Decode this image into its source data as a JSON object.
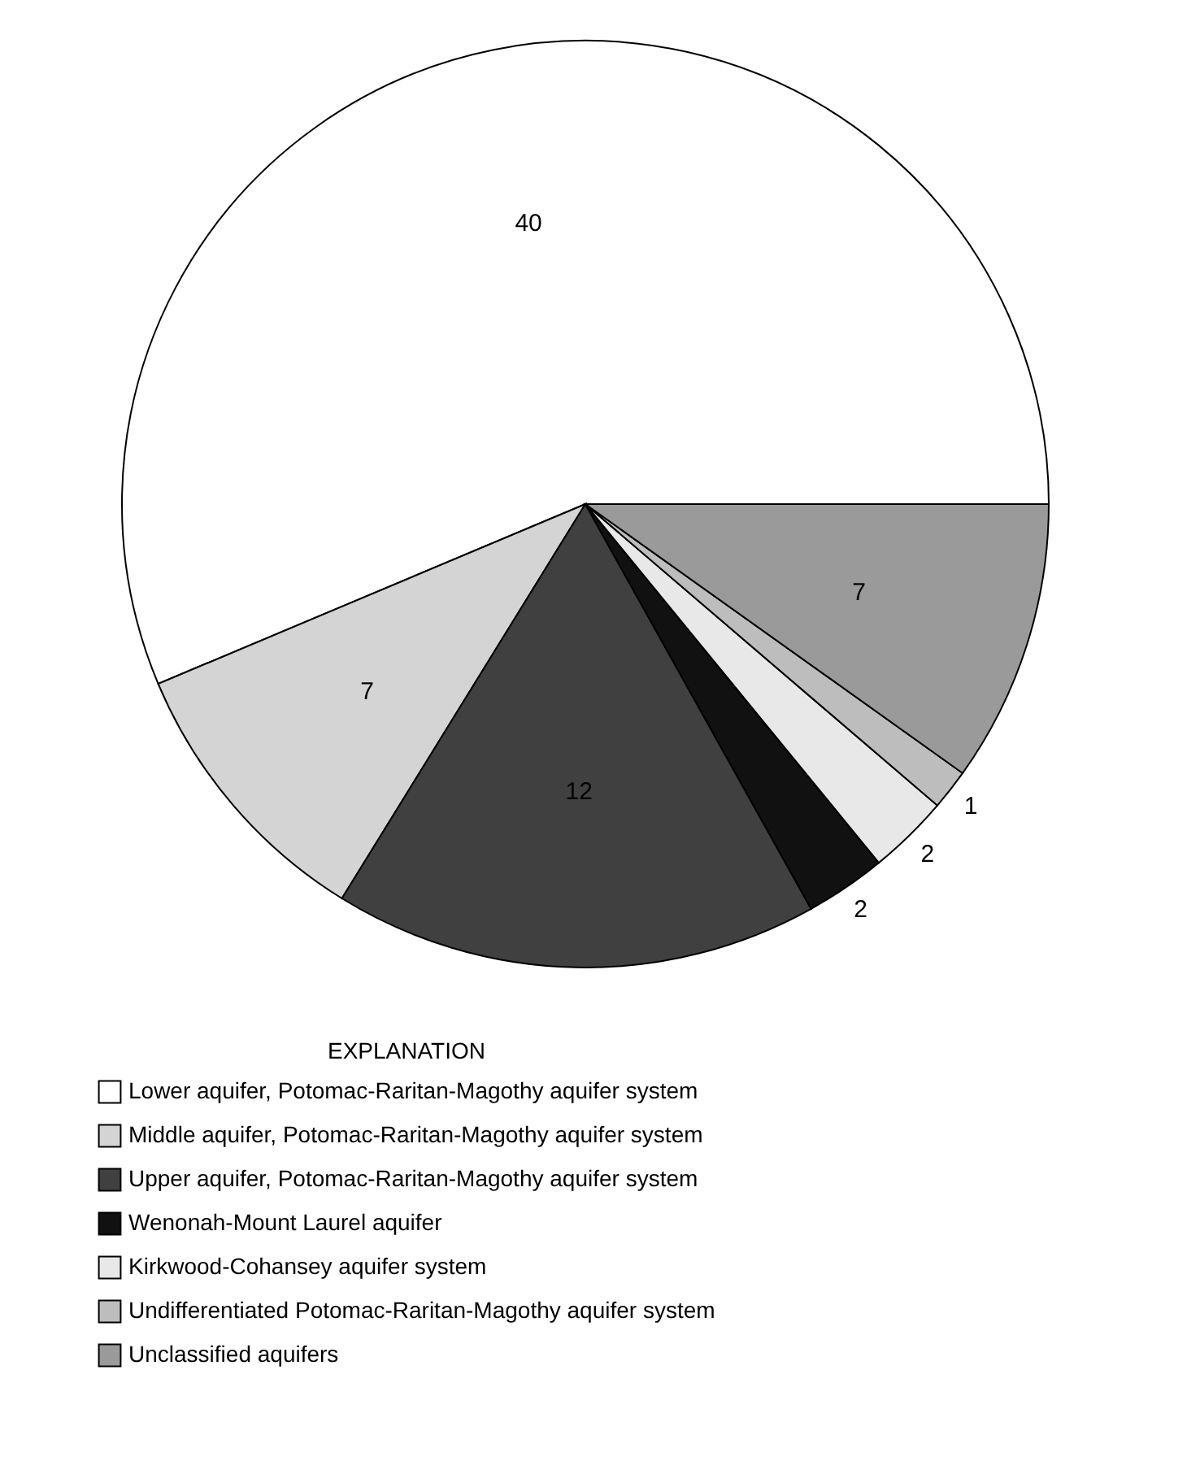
{
  "chart_data": {
    "type": "pie",
    "legend_title": "EXPLANATION",
    "legend": "bottom",
    "data_labels": true,
    "categories": [
      "Lower aquifer, Potomac-Raritan-Magothy aquifer system",
      "Middle aquifer, Potomac-Raritan-Magothy aquifer system",
      "Upper aquifer, Potomac-Raritan-Magothy aquifer system",
      "Wenonah-Mount Laurel aquifer",
      "Kirkwood-Cohansey aquifer system",
      "Undifferentiated Potomac-Raritan-Magothy aquifer system",
      "Unclassified aquifers"
    ],
    "values": [
      40,
      7,
      12,
      2,
      2,
      1,
      7
    ],
    "colors": [
      "#ffffff",
      "#d4d4d4",
      "#404040",
      "#111111",
      "#e8e8e8",
      "#bdbdbd",
      "#9a9a9a"
    ]
  }
}
